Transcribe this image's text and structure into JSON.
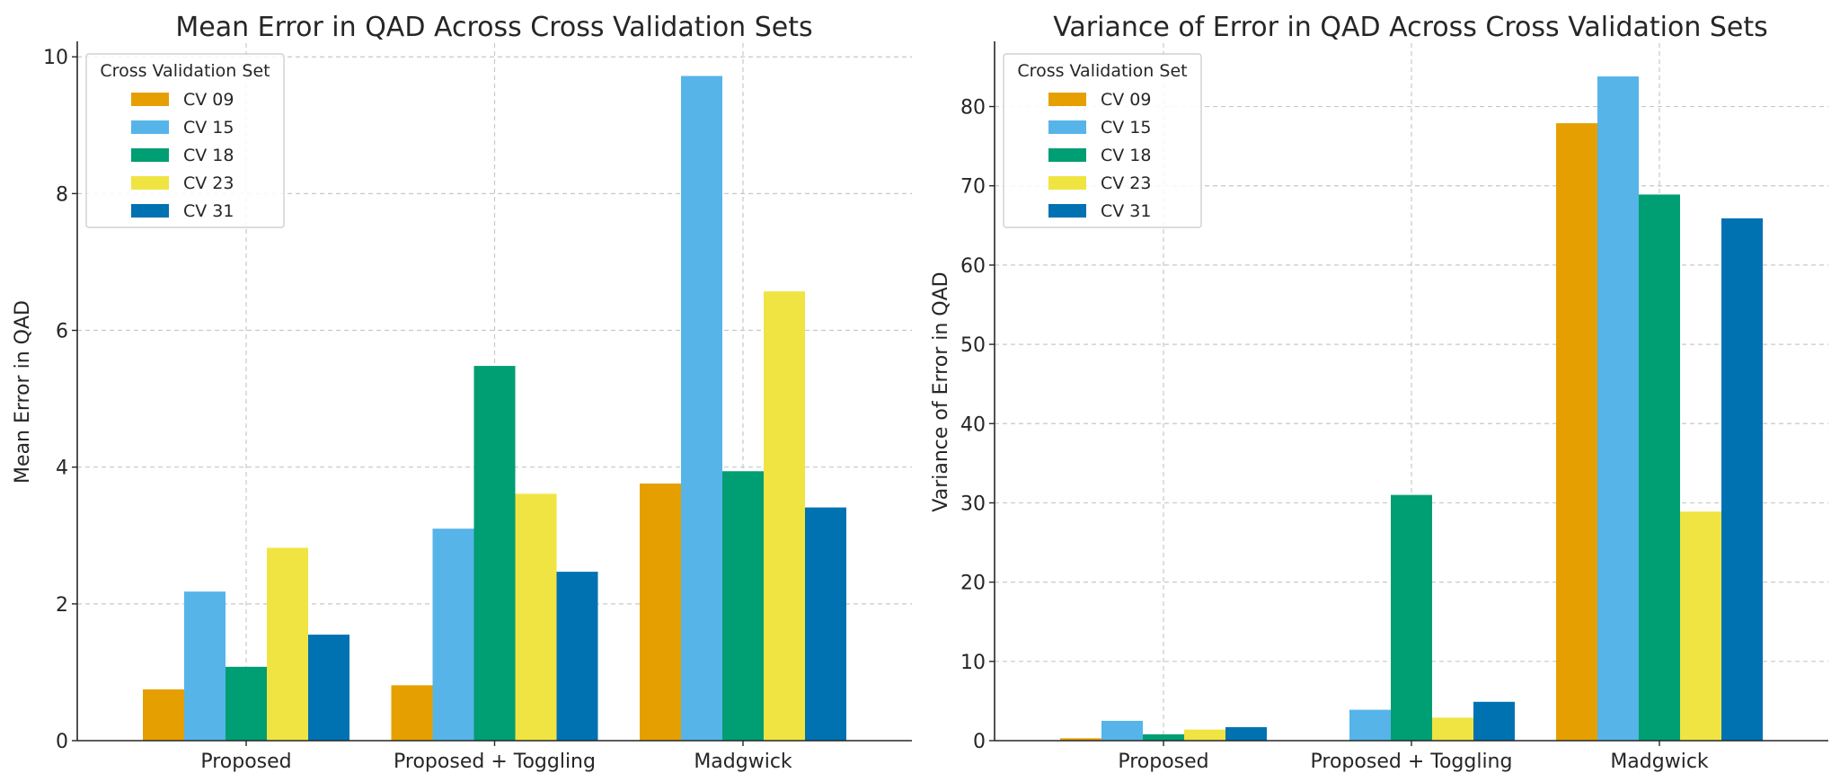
{
  "chart_data": [
    {
      "type": "bar",
      "title": "Mean Error in QAD Across Cross Validation Sets",
      "xlabel": "",
      "ylabel": "Mean Error in QAD",
      "categories": [
        "Proposed",
        "Proposed + Toggling",
        "Madgwick"
      ],
      "ylim": [
        0,
        10.2
      ],
      "yticks": [
        0,
        2,
        4,
        6,
        8,
        10
      ],
      "grid": true,
      "legend": {
        "title": "Cross Validation Set",
        "placement": "top-left"
      },
      "series": [
        {
          "name": "CV 09",
          "color": "#E69F00",
          "values": [
            0.75,
            0.81,
            3.76
          ]
        },
        {
          "name": "CV 15",
          "color": "#56B4E9",
          "values": [
            2.18,
            3.1,
            9.72
          ]
        },
        {
          "name": "CV 18",
          "color": "#009E73",
          "values": [
            1.08,
            5.48,
            3.94
          ]
        },
        {
          "name": "CV 23",
          "color": "#F0E442",
          "values": [
            2.82,
            3.61,
            6.57
          ]
        },
        {
          "name": "CV 31",
          "color": "#0072B2",
          "values": [
            1.55,
            2.47,
            3.41
          ]
        }
      ]
    },
    {
      "type": "bar",
      "title": "Variance of Error in QAD Across Cross Validation Sets",
      "xlabel": "",
      "ylabel": "Variance of Error in QAD",
      "categories": [
        "Proposed",
        "Proposed + Toggling",
        "Madgwick"
      ],
      "ylim": [
        0,
        88
      ],
      "yticks": [
        0,
        10,
        20,
        30,
        40,
        50,
        60,
        70,
        80
      ],
      "grid": true,
      "legend": {
        "title": "Cross Validation Set",
        "placement": "top-left"
      },
      "series": [
        {
          "name": "CV 09",
          "color": "#E69F00",
          "values": [
            0.3,
            0.05,
            77.9
          ]
        },
        {
          "name": "CV 15",
          "color": "#56B4E9",
          "values": [
            2.5,
            3.9,
            83.8
          ]
        },
        {
          "name": "CV 18",
          "color": "#009E73",
          "values": [
            0.8,
            31.0,
            68.9
          ]
        },
        {
          "name": "CV 23",
          "color": "#F0E442",
          "values": [
            1.4,
            2.9,
            28.9
          ]
        },
        {
          "name": "CV 31",
          "color": "#0072B2",
          "values": [
            1.7,
            4.9,
            65.9
          ]
        }
      ]
    }
  ]
}
